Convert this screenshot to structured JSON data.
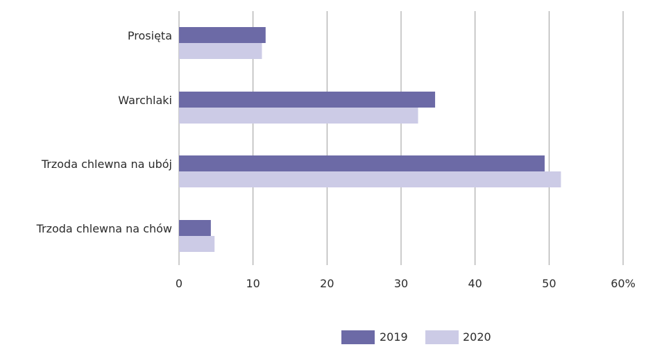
{
  "chart_data": {
    "type": "bar",
    "orientation": "horizontal",
    "categories": [
      "Prosięta",
      "Warchlaki",
      "Trzoda chlewna na ubój",
      "Trzoda chlewna na chów"
    ],
    "series": [
      {
        "name": "2019",
        "values": [
          11.7,
          34.6,
          49.4,
          4.3
        ],
        "color": "#6c6aa6"
      },
      {
        "name": "2020",
        "values": [
          11.2,
          32.3,
          51.6,
          4.8
        ],
        "color": "#cccbe6"
      }
    ],
    "xlim": [
      0,
      60
    ],
    "xticks": [
      "0",
      "10",
      "20",
      "30",
      "40",
      "50",
      "60%"
    ],
    "grid": true,
    "legend_position": "bottom"
  }
}
